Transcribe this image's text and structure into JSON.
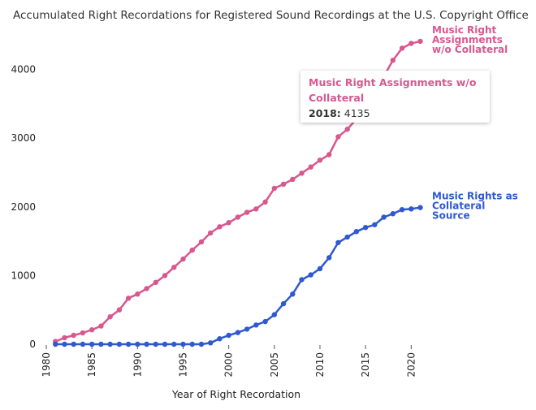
{
  "chart_data": {
    "type": "line",
    "title": "Accumulated Right Recordations for Registered Sound Recordings at the U.S. Copyright Office",
    "xlabel": "Year of Right Recordation",
    "ylabel": "",
    "xlim": [
      1980,
      2023
    ],
    "ylim": [
      0,
      4700
    ],
    "x_ticks": [
      1980,
      1985,
      1990,
      1995,
      2000,
      2005,
      2010,
      2015,
      2020
    ],
    "y_ticks": [
      0,
      1000,
      2000,
      3000,
      4000
    ],
    "grid": false,
    "x": [
      1981,
      1982,
      1983,
      1984,
      1985,
      1986,
      1987,
      1988,
      1989,
      1990,
      1991,
      1992,
      1993,
      1994,
      1995,
      1996,
      1997,
      1998,
      1999,
      2000,
      2001,
      2002,
      2003,
      2004,
      2005,
      2006,
      2007,
      2008,
      2009,
      2010,
      2011,
      2012,
      2013,
      2014,
      2015,
      2016,
      2017,
      2018,
      2019,
      2020,
      2021
    ],
    "series": [
      {
        "name": "Music Right Assignments w/o Collateral",
        "label_lines": [
          "Music Right",
          "Assignments",
          "w/o Collateral"
        ],
        "color": "#d9578f",
        "values": [
          40,
          95,
          130,
          165,
          210,
          265,
          400,
          500,
          670,
          730,
          810,
          900,
          1000,
          1120,
          1240,
          1370,
          1490,
          1620,
          1710,
          1770,
          1850,
          1920,
          1970,
          2070,
          2270,
          2330,
          2400,
          2490,
          2580,
          2680,
          2760,
          3020,
          3130,
          3280,
          3450,
          3650,
          3900,
          4135,
          4310,
          4380,
          4410
        ]
      },
      {
        "name": "Music Rights as Collateral Source",
        "label_lines": [
          "Music Rights as",
          "Collateral",
          "Source"
        ],
        "color": "#2f59d1",
        "values": [
          0,
          0,
          0,
          0,
          0,
          0,
          0,
          0,
          0,
          0,
          0,
          0,
          0,
          0,
          0,
          0,
          0,
          20,
          80,
          130,
          170,
          220,
          280,
          330,
          430,
          590,
          730,
          940,
          1010,
          1100,
          1260,
          1480,
          1560,
          1640,
          1700,
          1740,
          1850,
          1900,
          1960,
          1970,
          1990
        ]
      }
    ],
    "tooltip": {
      "series": "Music Right Assignments w/o Collateral",
      "title": "Music Right Assignments w/o Collateral",
      "year": "2018",
      "value": "4135"
    }
  }
}
